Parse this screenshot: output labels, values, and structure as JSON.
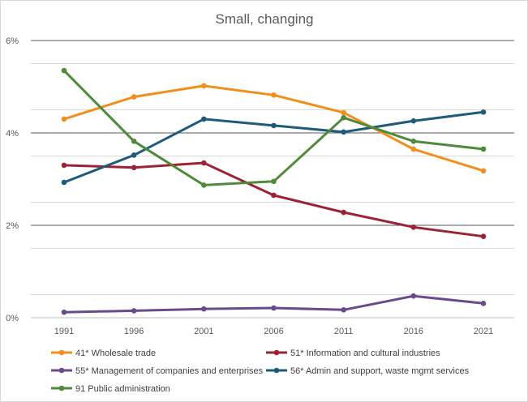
{
  "chart_data": {
    "type": "line",
    "title": "Small, changing",
    "xlabel": "",
    "ylabel": "",
    "categories": [
      "1991",
      "1996",
      "2001",
      "2006",
      "2011",
      "2016",
      "2021"
    ],
    "y_ticks": [
      "0%",
      "2%",
      "4%",
      "6%"
    ],
    "ylim": [
      0,
      6
    ],
    "grid": "horizontal",
    "legend_position": "bottom",
    "series": [
      {
        "name": "41* Wholesale trade",
        "color": "#f28e1c",
        "values": [
          4.3,
          4.78,
          5.02,
          4.82,
          4.44,
          3.65,
          3.18
        ]
      },
      {
        "name": "51* Information and cultural industries",
        "color": "#9b2335",
        "values": [
          3.3,
          3.25,
          3.35,
          2.65,
          2.28,
          1.96,
          1.76
        ]
      },
      {
        "name": "55* Management of companies and enterprises",
        "color": "#6a4a8c",
        "values": [
          0.12,
          0.15,
          0.19,
          0.21,
          0.17,
          0.47,
          0.31
        ]
      },
      {
        "name": "56* Admin and support, waste mgmt services",
        "color": "#1f5a7a",
        "values": [
          2.93,
          3.52,
          4.3,
          4.16,
          4.02,
          4.26,
          4.45
        ]
      },
      {
        "name": "91 Public administration",
        "color": "#4e8a3a",
        "values": [
          5.35,
          3.82,
          2.87,
          2.95,
          4.33,
          3.82,
          3.65
        ]
      }
    ]
  }
}
